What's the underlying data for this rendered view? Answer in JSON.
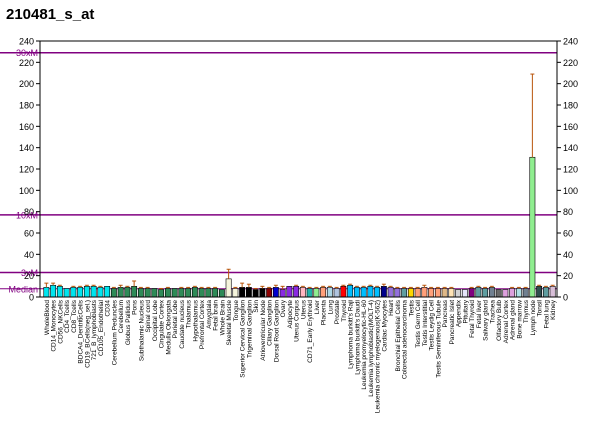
{
  "title": "210481_s_at",
  "chart_data": {
    "type": "bar",
    "title": "210481_s_at",
    "xlabel": "",
    "ylabel": "",
    "ylim": [
      0,
      240
    ],
    "yticks": [
      0,
      20,
      40,
      60,
      80,
      100,
      120,
      140,
      160,
      180,
      200,
      220,
      240
    ],
    "reference_lines": [
      {
        "label": "30xM",
        "value": 229,
        "color": "#800080"
      },
      {
        "label": "10xM",
        "value": 77,
        "color": "#800080"
      },
      {
        "label": "3xM",
        "value": 23,
        "color": "#800080"
      },
      {
        "label": "Median",
        "value": 7.7,
        "color": "#800080"
      }
    ],
    "categories": [
      "WholeBlood",
      "CD14_Monocytes",
      "CD56_NKCells",
      "CD4_Tcells",
      "CD8_Tcells",
      "BDCA4_DentriticCells",
      "CD19_BCells(neg_sel.)",
      "721_B_lymphoblasts",
      "CD105_Endothelial",
      "CD34",
      "Cerebellum Peduncles",
      "Cerebellum",
      "Globus Pallidus",
      "Pons",
      "Subthalamic Nucleus",
      "Spinal cord",
      "Occipital Lobe",
      "Cingulate Cortex",
      "Medulla Oblongata",
      "Parietal Lobe",
      "Caudate nucleus",
      "Thalamus",
      "Hypothalamus",
      "Prefrontal Cortex",
      "Amygdala",
      "Fetal brain",
      "Whole Brain",
      "Skeletal Muscle",
      "Tongue",
      "Superior Cervical Ganglion",
      "Trigeminal Ganglion",
      "Skin",
      "Atrioventricular Node",
      "Ciliary Ganglion",
      "Dorsal Root Ganglion",
      "Ovary",
      "Adipocyte",
      "Uterus Corpus",
      "Uterus",
      "CD71_Early Erythroid",
      "Liver",
      "Placenta",
      "Lung",
      "Prostate",
      "Thyroid",
      "Lymphoma burkitt's Raji",
      "Lymphoma burkitt's Daudi",
      "Leukemia promyelocytic-HL-60",
      "Leukemia lymphoblastic(MOLT-4)",
      "Leukemia chronic myelogenous(K-562)",
      "Cardiac Myocytes",
      "Heart",
      "Bronchial Epithelial Cells",
      "Colorectal adenocarcinoma",
      "Testis",
      "Testis Germ Cell",
      "Testis Interstitial",
      "Testis Leydig Cell",
      "Testis Seminiferous Tubule",
      "Pancreas",
      "Pancreatic Islet",
      "Appendix",
      "Pituitary",
      "Fetal Thyroid",
      "Fetal liver",
      "Salivary gland",
      "Trachea",
      "Olfactory Bulb",
      "Adrenal Cortex",
      "Adrenal gland",
      "Bone marrow",
      "Thymus",
      "Lymph node",
      "Tonsil",
      "Fetal lung",
      "Kidney"
    ],
    "category_label_text": [
      "WholeBlood",
      "CD14_Monocytes",
      "CD56_NKCells",
      "CD4_Tcells",
      "CD8_Tcells",
      "BDCA4_DentriticCells",
      "CD19_BCells(neg_sel.)",
      "721_B_lymphoblasts",
      "CD105_Endothelial",
      "CD34",
      "Cerebellum Peduncles",
      "Cerebellum",
      "Globus Pallidus",
      "Pons",
      "Subthalamic Nucleus",
      "Spinal cord",
      "Occipital Lobe",
      "Cingulate Cortex",
      "Medulla Oblongata",
      "Parietal Lobe",
      "Caudate nucleus",
      "Thalamus",
      "Hypothalamus",
      "Prefrontal Cortex",
      "Amygdala",
      "Fetal brain",
      "Whole Brain",
      "Skeletal Muscle",
      "Tongue",
      "Superior Cervical Ganglion",
      "Trigeminal Ganglion",
      "Skin",
      "Atrioventricular Node",
      "Ciliary Ganglion",
      "Dorsal Root Ganglion",
      "Ovary",
      "Adipocyte",
      "Uterus Corpus",
      "Uterus",
      "CD71_Early Erythroid",
      "Liver",
      "Placenta",
      "Lung",
      "Prostate",
      "Thyroid",
      "Lymphoma burkitt's Raji",
      "Lymphoma burkitt's Daudi",
      "Leukemia promyelocytic-HL-60",
      "Leukemia lymphoblastic(MOLT-4)",
      "Leukemia chronic myelogenous(K-562)",
      "Cardiac Myocytes",
      "Heart",
      "Bronchial Epithelial Cells",
      "Colorectal adenocarcinoma",
      "Testis",
      "Testis Germ Cell",
      "Testis Interstitial",
      "Testis Leydig Cell",
      "Testis Seminiferous Tubule",
      "Pancreas",
      "Pancreatic Islet",
      "Appendix",
      "Pituitary",
      "Fetal Thyroid",
      "Fetal liver",
      "Salivary gland",
      "Trachea",
      "Olfactory Bulb",
      "Adrenal Cortex",
      "Adrenal gland",
      "Bone marrow",
      "Thymus",
      "Lymph node",
      "Tonsil",
      "Fetal lung",
      "Kidney"
    ],
    "values": [
      9,
      11,
      10,
      8,
      9,
      9,
      10,
      10,
      9,
      10,
      8,
      9,
      9,
      10,
      8,
      8,
      8,
      7,
      8,
      8,
      8,
      8,
      9,
      8,
      8,
      8,
      7,
      17,
      8,
      9,
      9,
      7,
      8,
      8,
      9,
      7,
      10,
      10,
      9,
      8,
      8,
      9,
      9,
      8,
      10,
      11,
      9,
      9,
      10,
      9,
      10,
      9,
      8,
      8,
      8,
      8,
      9,
      8,
      8,
      8,
      8,
      7,
      7,
      8,
      9,
      8,
      9,
      7,
      7,
      8,
      8,
      8,
      131,
      10,
      9,
      10
    ],
    "errors": [
      4,
      2,
      1,
      0,
      1,
      1,
      1,
      1,
      1,
      0,
      1,
      2,
      1,
      5,
      1,
      1,
      0,
      1,
      1,
      0,
      1,
      1,
      1,
      1,
      1,
      1,
      0,
      9,
      1,
      4,
      3,
      1,
      2,
      1,
      2,
      3,
      0,
      1,
      1,
      1,
      1,
      1,
      1,
      1,
      1,
      1,
      1,
      1,
      1,
      1,
      2,
      1,
      1,
      1,
      1,
      1,
      2,
      1,
      1,
      1,
      1,
      0,
      0,
      1,
      1,
      1,
      1,
      0,
      0,
      1,
      1,
      1,
      78,
      1,
      1,
      1
    ],
    "colors": [
      "#00e5ee",
      "#00e5ee",
      "#00e5ee",
      "#00e5ee",
      "#00e5ee",
      "#00e5ee",
      "#00e5ee",
      "#00e5ee",
      "#00e5ee",
      "#00e5ee",
      "#2e8b57",
      "#2e8b57",
      "#2e8b57",
      "#2e8b57",
      "#2e8b57",
      "#2e8b57",
      "#2e8b57",
      "#2e8b57",
      "#2e8b57",
      "#2e8b57",
      "#2e8b57",
      "#2e8b57",
      "#2e8b57",
      "#2e8b57",
      "#2e8b57",
      "#2e8b57",
      "#2e8b57",
      "#f5f5dc",
      "#f5f5dc",
      "#000000",
      "#000000",
      "#000000",
      "#000000",
      "#8b0000",
      "#0000cd",
      "#8a2be2",
      "#8a2be2",
      "#8a2be2",
      "#ffb6c1",
      "#20b2aa",
      "#90ee90",
      "#ffa07a",
      "#add8e6",
      "#b0c4de",
      "#ff0000",
      "#00bfff",
      "#00bfff",
      "#00bfff",
      "#00bfff",
      "#00bfff",
      "#00008b",
      "#9370db",
      "#9370db",
      "#5f9ea0",
      "#ffd700",
      "#ffa07a",
      "#ffa07a",
      "#ffa07a",
      "#ffa07a",
      "#deb887",
      "#ffe4b5",
      "#d3d3d3",
      "#e6e6fa",
      "#800080",
      "#5f9ea0",
      "#5f9ea0",
      "#708090",
      "#696969",
      "#dda0dd",
      "#dda0dd",
      "#b0e0e6",
      "#708090",
      "#90ee90",
      "#2f4f4f",
      "#5f9ea0",
      "#d8bfd8"
    ]
  }
}
